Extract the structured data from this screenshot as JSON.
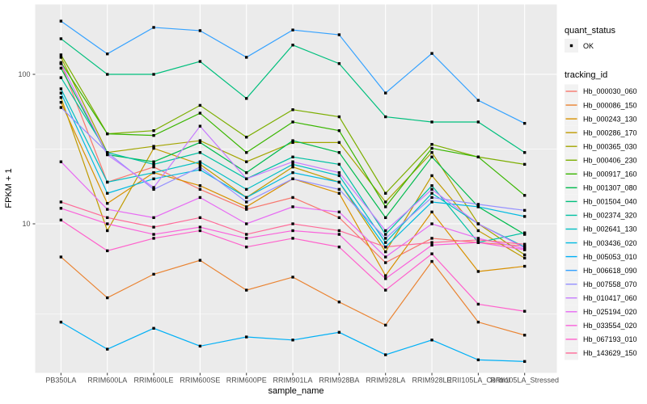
{
  "figure": {
    "background": "#ffffff",
    "panel_background": "#ebebeb",
    "gridline_color": "#ffffff",
    "tick_label_color": "#4d4d4d",
    "axis_title_color": "#000000",
    "point_color": "#000000"
  },
  "chart_data": {
    "type": "line",
    "title": "",
    "xlabel": "sample_name",
    "ylabel": "FPKM + 1",
    "y_scale": "log10",
    "ylim": [
      1.1,
      292
    ],
    "grid": true,
    "legend_position": "right",
    "y_ticks": [
      {
        "value": 100,
        "label": "100"
      },
      {
        "value": 10,
        "label": "10"
      }
    ],
    "y_minor_gridlines": [
      31.6,
      2.5
    ],
    "x_categories": [
      "PB350LA",
      "RRIM600LA",
      "RRIM600LE",
      "RRIM600SE",
      "RRIM600PE",
      "RRIM901LA",
      "RRIM928BA",
      "RRIM928LA",
      "RRIM928LE",
      "RRII105LA_Control",
      "RRII105LA_Stressed"
    ],
    "legend": {
      "quant_status_title": "quant_status",
      "quant_status_items": [
        {
          "label": "OK",
          "symbol": "black-point"
        }
      ],
      "tracking_title": "tracking_id"
    },
    "series": [
      {
        "tracking_id": "Hb_000030_060",
        "color": "#F8766D",
        "values": [
          118,
          19,
          24,
          17,
          12.5,
          15,
          11,
          5.5,
          8,
          7.5,
          7.1
        ]
      },
      {
        "tracking_id": "Hb_000086_150",
        "color": "#EA8331",
        "values": [
          6.0,
          3.2,
          4.6,
          5.7,
          3.6,
          4.4,
          3.0,
          2.1,
          5.6,
          2.2,
          1.8
        ]
      },
      {
        "tracking_id": "Hb_000243_130",
        "color": "#D89000",
        "values": [
          65,
          13.7,
          22,
          18,
          13,
          20,
          16,
          4.5,
          12,
          4.8,
          5.2
        ]
      },
      {
        "tracking_id": "Hb_000286_170",
        "color": "#C09B00",
        "values": [
          70,
          9,
          32,
          25,
          15,
          24,
          19,
          6.5,
          21,
          9,
          5.9
        ]
      },
      {
        "tracking_id": "Hb_000365_030",
        "color": "#A3A500",
        "values": [
          130,
          30,
          33,
          36,
          26,
          35,
          35,
          14,
          30,
          10,
          6.2
        ]
      },
      {
        "tracking_id": "Hb_000406_230",
        "color": "#7CAE00",
        "values": [
          135,
          40,
          42,
          62,
          38,
          58,
          52,
          16,
          34,
          28,
          25
        ]
      },
      {
        "tracking_id": "Hb_000917_160",
        "color": "#39B600",
        "values": [
          120,
          40,
          39,
          55,
          30,
          48,
          42,
          13,
          32,
          28,
          15.5
        ]
      },
      {
        "tracking_id": "Hb_001307_080",
        "color": "#00BB4E",
        "values": [
          110,
          29,
          26,
          35,
          22,
          36,
          30,
          11,
          28,
          13,
          8.5
        ]
      },
      {
        "tracking_id": "Hb_001504_040",
        "color": "#00BF7D",
        "values": [
          173,
          100,
          100,
          122,
          69,
          157,
          118,
          52,
          48,
          48,
          30
        ]
      },
      {
        "tracking_id": "Hb_002374_320",
        "color": "#00C1A3",
        "values": [
          95,
          30,
          25,
          30,
          20,
          28,
          25,
          8.5,
          18,
          7.5,
          8.7
        ]
      },
      {
        "tracking_id": "Hb_002641_130",
        "color": "#00BFC4",
        "values": [
          80,
          19,
          22,
          26,
          17,
          25,
          21,
          7.5,
          16,
          10,
          7.0
        ]
      },
      {
        "tracking_id": "Hb_003436_020",
        "color": "#00BAE0",
        "values": [
          75,
          16,
          20,
          23,
          15,
          22,
          19,
          7.0,
          14,
          13,
          11.2
        ]
      },
      {
        "tracking_id": "Hb_005053_010",
        "color": "#00B0F6",
        "values": [
          2.2,
          1.45,
          2.0,
          1.52,
          1.75,
          1.67,
          1.88,
          1.33,
          1.67,
          1.23,
          1.2
        ]
      },
      {
        "tracking_id": "Hb_006618_090",
        "color": "#35A2FF",
        "values": [
          227,
          137,
          206,
          196,
          130,
          198,
          184,
          75,
          138,
          67,
          47
        ]
      },
      {
        "tracking_id": "Hb_007558_070",
        "color": "#9590FF",
        "values": [
          60,
          30,
          17,
          24,
          14,
          20,
          17,
          8.0,
          15,
          13.5,
          12.3
        ]
      },
      {
        "tracking_id": "Hb_010417_060",
        "color": "#C77CFF",
        "values": [
          118,
          29,
          17.5,
          45,
          20,
          26,
          22,
          9,
          17,
          10,
          6.9
        ]
      },
      {
        "tracking_id": "Hb_025194_020",
        "color": "#E76BF3",
        "values": [
          26,
          12.5,
          11,
          15,
          10,
          13,
          12,
          6,
          10,
          8,
          6.8
        ]
      },
      {
        "tracking_id": "Hb_033554_020",
        "color": "#FA62DB",
        "values": [
          12.7,
          10,
          8.5,
          9.5,
          8.0,
          9.0,
          8.5,
          4.3,
          7.2,
          7.5,
          6.7
        ]
      },
      {
        "tracking_id": "Hb_067193_010",
        "color": "#FF61CC",
        "values": [
          10.6,
          6.6,
          8.0,
          9.0,
          7.0,
          8.0,
          7.0,
          3.6,
          6.3,
          2.9,
          2.6
        ]
      },
      {
        "tracking_id": "Hb_143629_150",
        "color": "#FF6A98",
        "values": [
          14,
          11,
          9.5,
          11,
          8.5,
          10,
          9,
          7.0,
          7.5,
          7.8,
          7.3
        ]
      }
    ]
  }
}
